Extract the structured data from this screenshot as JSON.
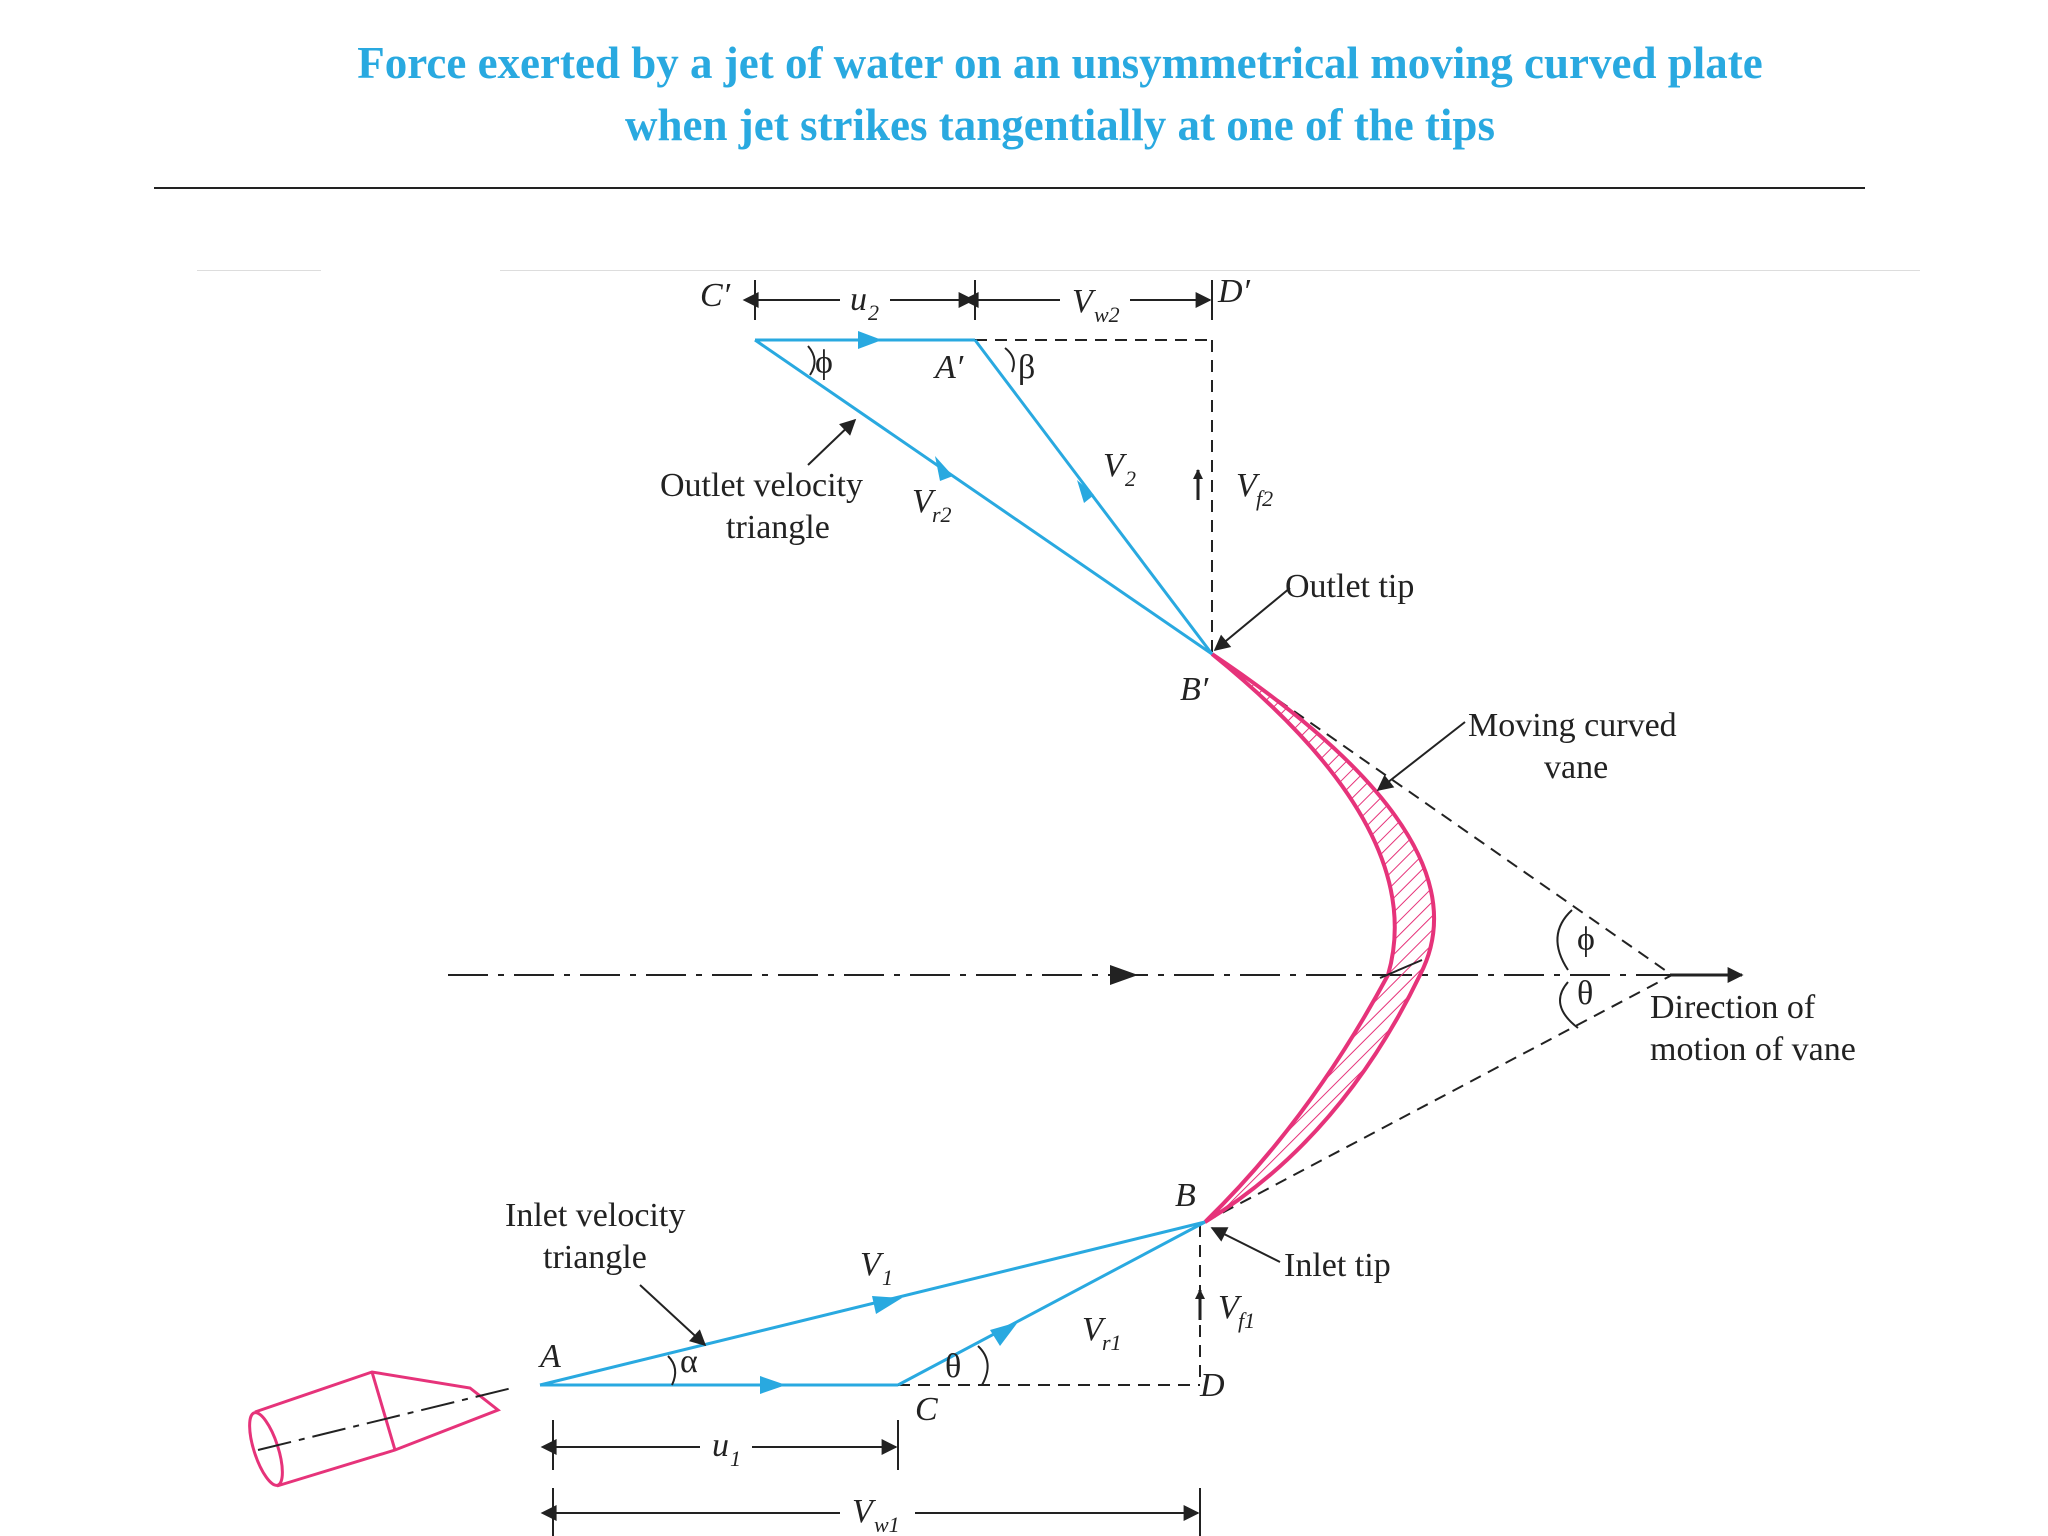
{
  "title": {
    "line1": "Force exerted by a jet of water on an unsymmetrical moving curved plate",
    "line2": "when jet strikes tangentially at one of the tips"
  },
  "labels": {
    "outlet_triangle_1": "Outlet velocity",
    "outlet_triangle_2": "triangle",
    "inlet_triangle_1": "Inlet velocity",
    "inlet_triangle_2": "triangle",
    "outlet_tip": "Outlet tip",
    "inlet_tip": "Inlet tip",
    "vane_1": "Moving curved",
    "vane_2": "vane",
    "direction_1": "Direction of",
    "direction_2": "motion of vane"
  },
  "points": {
    "C_prime": "C′",
    "D_prime": "D′",
    "A_prime": "A′",
    "B_prime": "B′",
    "A": "A",
    "B": "B",
    "C": "C",
    "D": "D"
  },
  "symbols": {
    "u2": "u",
    "u2_sub": "2",
    "Vw2": "V",
    "Vw2_sub": "w2",
    "V2": "V",
    "V2_sub": "2",
    "Vr2": "V",
    "Vr2_sub": "r2",
    "Vf2": "V",
    "Vf2_sub": "f2",
    "V1": "V",
    "V1_sub": "1",
    "Vr1": "V",
    "Vr1_sub": "r1",
    "Vf1": "V",
    "Vf1_sub": "f1",
    "u1": "u",
    "u1_sub": "1",
    "Vw1": "V",
    "Vw1_sub": "w1",
    "phi": "ϕ",
    "beta": "β",
    "alpha": "α",
    "theta": "θ"
  },
  "colors": {
    "title": "#29a9e0",
    "vector": "#29a9e0",
    "vane": "#e6337a",
    "ink": "#222222"
  }
}
